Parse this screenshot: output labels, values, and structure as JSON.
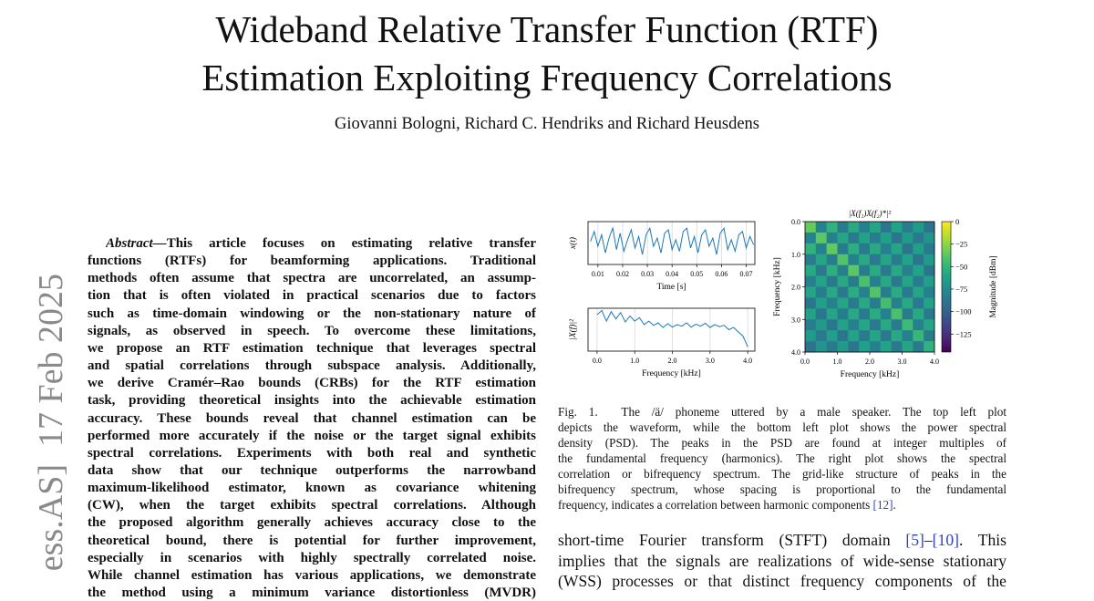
{
  "title": [
    "Wideband Relative Transfer Function (RTF)",
    "Estimation Exploiting Frequency Correlations"
  ],
  "authors": "Giovanni Bologni, Richard C. Hendriks and Richard Heusdens",
  "stamp": "ess.AS]  17 Feb 2025",
  "abstract": {
    "label": "Abstract—",
    "lines": [
      "This article focuses on estimating relative transfer",
      "functions (RTFs) for beamforming applications.  Traditional",
      "methods often assume that spectra are uncorrelated, an assump-",
      "tion that is often violated in practical scenarios due to factors",
      "such as time-domain windowing or the non-stationary nature of",
      "signals, as observed in speech.  To overcome these limitations,",
      "we propose an RTF estimation technique that leverages spectral",
      "and spatial correlations through subspace analysis. Additionally,",
      "we derive Cramér–Rao bounds (CRBs) for the RTF estimation",
      "task, providing theoretical insights into the achievable estimation",
      "accuracy. These bounds reveal that channel estimation can be",
      "performed more accurately if the noise or the target signal exhibits",
      "spectral correlations. Experiments with both real and synthetic",
      "data show that our technique outperforms the narrowband",
      "maximum-likelihood estimator, known as covariance whitening",
      "(CW), when the target exhibits spectral correlations. Although",
      "the proposed algorithm generally achieves accuracy close to the",
      "theoretical bound, there is potential for further improvement,",
      "especially in scenarios with highly spectrally correlated noise.",
      "While channel estimation has various applications, we demonstrate",
      "the method using a minimum variance distortionless (MVDR)"
    ]
  },
  "caption": {
    "label": "Fig. 1.",
    "link_color": "#2b3fc9",
    "lines": [
      [
        {
          "text": "The /ä/ phoneme uttered by a male speaker. The top left plot"
        }
      ],
      [
        {
          "text": "depicts the waveform, while the bottom left plot shows the power spectral"
        }
      ],
      [
        {
          "text": "density (PSD). The peaks in the PSD are found at integer multiples of"
        }
      ],
      [
        {
          "text": "the fundamental frequency (harmonics). The right plot shows the spectral"
        }
      ],
      [
        {
          "text": "correlation or bifrequency spectrum. The grid-like structure of peaks in the"
        }
      ],
      [
        {
          "text": "bifrequency spectrum, whose spacing is proportional to the fundamental"
        }
      ],
      [
        {
          "text": "frequency, indicates a correlation between harmonic components "
        },
        {
          "text": "[12]",
          "link": true
        },
        {
          "text": "."
        }
      ]
    ]
  },
  "body": {
    "lines": [
      [
        {
          "text": "short-time Fourier transform (STFT) domain "
        },
        {
          "text": "[5]",
          "link": true
        },
        {
          "text": "–"
        },
        {
          "text": "[10]",
          "link": true
        },
        {
          "text": ". This"
        }
      ],
      [
        {
          "text": "implies that the signals are realizations of wide-sense stationary"
        }
      ],
      [
        {
          "text": "(WSS) processes or that distinct frequency components of the"
        }
      ]
    ]
  },
  "chart_data": [
    {
      "type": "line",
      "ylabel": "x(t)",
      "xlabel": "Time [s]",
      "color": "#1f77b4",
      "grid": true,
      "xlim": [
        0.006,
        0.0735
      ],
      "ylim": [
        -1.3,
        1.3
      ],
      "xticks": [
        0.01,
        0.02,
        0.03,
        0.04,
        0.05,
        0.06,
        0.07
      ],
      "x": [
        0.007,
        0.0085,
        0.01,
        0.0115,
        0.013,
        0.0145,
        0.016,
        0.0175,
        0.019,
        0.0205,
        0.022,
        0.0235,
        0.025,
        0.0265,
        0.028,
        0.0295,
        0.031,
        0.0325,
        0.034,
        0.0355,
        0.037,
        0.0385,
        0.04,
        0.0415,
        0.043,
        0.0445,
        0.046,
        0.0475,
        0.049,
        0.0505,
        0.052,
        0.0535,
        0.055,
        0.0565,
        0.058,
        0.0595,
        0.061,
        0.0625,
        0.064,
        0.0655,
        0.067,
        0.0685,
        0.07,
        0.0715,
        0.073
      ],
      "values": [
        0.1,
        0.7,
        -0.2,
        0.5,
        -0.6,
        0.3,
        0.9,
        -0.4,
        0.6,
        -0.5,
        0.2,
        0.8,
        -0.3,
        0.4,
        -0.7,
        0.5,
        0.9,
        -0.2,
        0.3,
        -0.6,
        0.6,
        0.8,
        -0.4,
        0.2,
        -0.5,
        0.7,
        0.9,
        -0.3,
        0.4,
        -0.6,
        0.5,
        0.8,
        -0.2,
        0.3,
        -0.7,
        0.6,
        0.9,
        -0.4,
        0.2,
        -0.5,
        0.5,
        0.7,
        -0.3,
        0.4,
        -0.1
      ]
    },
    {
      "type": "line",
      "ylabel": "|X(f)|²",
      "xlabel": "Frequency [kHz]",
      "color": "#1f77b4",
      "grid": true,
      "xlim": [
        -0.24,
        4.19
      ],
      "ylim": [
        0,
        1
      ],
      "xticks": [
        {
          "value": 0,
          "label": "0.0"
        },
        {
          "value": 1,
          "label": "1.0"
        },
        {
          "value": 2,
          "label": "2.0"
        },
        {
          "value": 3,
          "label": "3.0"
        },
        {
          "value": 4,
          "label": "4.0"
        }
      ],
      "x": [
        0,
        0.125,
        0.25,
        0.375,
        0.5,
        0.625,
        0.75,
        0.875,
        1,
        1.125,
        1.25,
        1.375,
        1.5,
        1.625,
        1.75,
        1.875,
        2,
        2.125,
        2.25,
        2.375,
        2.5,
        2.625,
        2.75,
        2.875,
        3,
        3.125,
        3.25,
        3.375,
        3.5,
        3.625,
        3.75,
        3.875,
        4
      ],
      "values": [
        0.85,
        0.95,
        0.7,
        0.92,
        0.75,
        0.9,
        0.68,
        0.82,
        0.7,
        0.78,
        0.62,
        0.7,
        0.6,
        0.66,
        0.55,
        0.64,
        0.56,
        0.62,
        0.58,
        0.66,
        0.56,
        0.63,
        0.58,
        0.65,
        0.55,
        0.62,
        0.57,
        0.6,
        0.5,
        0.55,
        0.45,
        0.35,
        0.1
      ]
    },
    {
      "type": "heatmap",
      "title": "|X(f₁)X(f₂)*|²",
      "xlabel": "Frequency [kHz]",
      "ylabel": "Frequency [kHz]",
      "xlim": [
        0,
        4
      ],
      "ylim": [
        4,
        0
      ],
      "colormap": "viridis",
      "xticks": [
        {
          "value": 0,
          "label": "0.0"
        },
        {
          "value": 1,
          "label": "1.0"
        },
        {
          "value": 2,
          "label": "2.0"
        },
        {
          "value": 3,
          "label": "3.0"
        },
        {
          "value": 4,
          "label": "4.0"
        }
      ],
      "yticks": [
        {
          "value": 0,
          "label": "0.0"
        },
        {
          "value": 1,
          "label": "1.0"
        },
        {
          "value": 2,
          "label": "2.0"
        },
        {
          "value": 3,
          "label": "3.0"
        },
        {
          "value": 4,
          "label": "4.0"
        }
      ],
      "values": [
        [
          -35,
          -80,
          -52,
          -85,
          -58,
          -82,
          -60,
          -88,
          -62,
          -84,
          -66,
          -90
        ],
        [
          -80,
          -38,
          -82,
          -60,
          -86,
          -62,
          -84,
          -64,
          -88,
          -66,
          -86,
          -70
        ],
        [
          -52,
          -82,
          -36,
          -84,
          -54,
          -86,
          -58,
          -82,
          -60,
          -88,
          -64,
          -86
        ],
        [
          -85,
          -60,
          -84,
          -40,
          -82,
          -58,
          -86,
          -60,
          -84,
          -62,
          -88,
          -66
        ],
        [
          -58,
          -86,
          -54,
          -82,
          -38,
          -84,
          -56,
          -86,
          -58,
          -82,
          -62,
          -88
        ],
        [
          -82,
          -62,
          -86,
          -58,
          -84,
          -42,
          -82,
          -58,
          -86,
          -60,
          -84,
          -64
        ],
        [
          -60,
          -84,
          -58,
          -86,
          -56,
          -82,
          -40,
          -84,
          -56,
          -86,
          -60,
          -82
        ],
        [
          -88,
          -64,
          -82,
          -60,
          -86,
          -58,
          -84,
          -44,
          -82,
          -58,
          -86,
          -62
        ],
        [
          -62,
          -88,
          -60,
          -84,
          -58,
          -86,
          -56,
          -82,
          -42,
          -84,
          -58,
          -86
        ],
        [
          -84,
          -66,
          -88,
          -62,
          -82,
          -60,
          -86,
          -58,
          -84,
          -46,
          -82,
          -60
        ],
        [
          -66,
          -86,
          -64,
          -88,
          -62,
          -84,
          -60,
          -86,
          -58,
          -82,
          -48,
          -84
        ],
        [
          -90,
          -70,
          -86,
          -66,
          -88,
          -64,
          -82,
          -62,
          -86,
          -60,
          -84,
          -52
        ]
      ],
      "colorbar": {
        "label": "Magnitude [dBm]",
        "lim": [
          -145,
          0
        ],
        "ticks": [
          0,
          {
            "value": -25,
            "label": "−25"
          },
          {
            "value": -50,
            "label": "−50"
          },
          {
            "value": -75,
            "label": "−75"
          },
          {
            "value": -100,
            "label": "−100"
          },
          {
            "value": -125,
            "label": "−125"
          }
        ]
      }
    }
  ]
}
